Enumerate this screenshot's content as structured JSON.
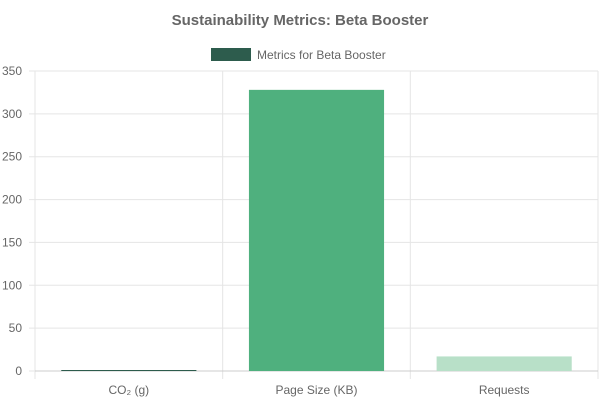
{
  "chart_data": {
    "type": "bar",
    "title": "Sustainability Metrics: Beta Booster",
    "categories": [
      "CO₂ (g)",
      "Page Size (KB)",
      "Requests"
    ],
    "series": [
      {
        "name": "Metrics for Beta Booster",
        "values": [
          0.5,
          328,
          17
        ],
        "colors": [
          "#2d5c4d",
          "#4fb07e",
          "#b8e0c8"
        ]
      }
    ],
    "legend_color": "#2d5c4d",
    "ylim": [
      0,
      350
    ],
    "yticks": [
      0,
      50,
      100,
      150,
      200,
      250,
      300,
      350
    ],
    "grid": true,
    "legend_position": "top-center",
    "xlabel": "",
    "ylabel": ""
  }
}
